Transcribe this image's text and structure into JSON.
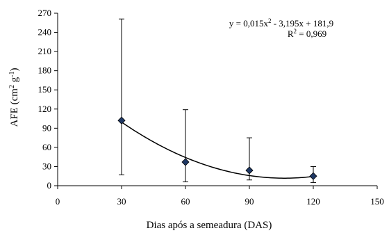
{
  "chart_data": {
    "type": "scatter",
    "title": "",
    "xlabel": "Dias após a semeadura (DAS)",
    "ylabel_main": "AFE (cm",
    "ylabel_sup1": "2",
    "ylabel_mid": " g",
    "ylabel_sup2": "-1",
    "ylabel_end": ")",
    "xlim": [
      0,
      150
    ],
    "ylim": [
      0,
      270
    ],
    "x_ticks": [
      0,
      30,
      60,
      90,
      120,
      150
    ],
    "y_ticks": [
      0,
      30,
      60,
      90,
      120,
      150,
      180,
      210,
      240,
      270
    ],
    "x_tick_labels": [
      "0",
      "30",
      "60",
      "90",
      "120",
      "150"
    ],
    "y_tick_labels": [
      "0",
      "30",
      "60",
      "90",
      "120",
      "150",
      "180",
      "210",
      "240",
      "270"
    ],
    "points": [
      {
        "x": 30,
        "y": 102,
        "err_low": 17,
        "err_high": 261
      },
      {
        "x": 60,
        "y": 37,
        "err_low": 6,
        "err_high": 119
      },
      {
        "x": 90,
        "y": 24,
        "err_low": 9,
        "err_high": 75
      },
      {
        "x": 120,
        "y": 15,
        "err_low": 5,
        "err_high": 30
      }
    ],
    "trendline": {
      "a": 0.015,
      "b": -3.195,
      "c": 181.9,
      "x_from": 30,
      "x_to": 120
    },
    "equation": {
      "line1_a": "y = 0,015x",
      "line1_sup": "2",
      "line1_b": " - 3,195x + 181,9",
      "line2_a": "R",
      "line2_sup": "2",
      "line2_b": " = 0,969"
    },
    "grid": false,
    "marker_color": "#1F3864",
    "line_color": "#000000"
  }
}
